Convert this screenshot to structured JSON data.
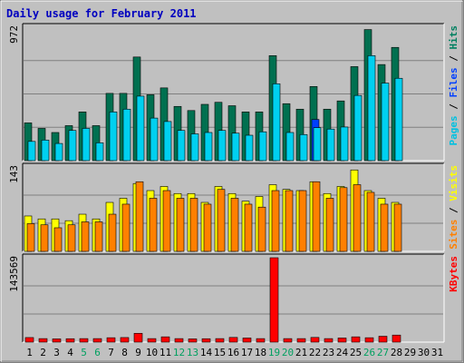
{
  "chart_data": {
    "type": "bar",
    "title": "Daily usage for February 2011",
    "categories": [
      "1",
      "2",
      "3",
      "4",
      "5",
      "6",
      "7",
      "8",
      "9",
      "10",
      "11",
      "12",
      "13",
      "14",
      "15",
      "16",
      "17",
      "18",
      "19",
      "20",
      "21",
      "22",
      "23",
      "24",
      "25",
      "26",
      "27",
      "28",
      "29",
      "30",
      "31"
    ],
    "weekend_days": [
      "5",
      "6",
      "12",
      "13",
      "19",
      "20",
      "26",
      "27"
    ],
    "panels": [
      {
        "id": "hits",
        "ylabel_parts": [
          "Pages",
          "Files",
          "Hits"
        ],
        "ylabel_colors": [
          "#00c0e0",
          "#0040ff",
          "#008060"
        ],
        "max_label": "972",
        "ylim": [
          0,
          972
        ],
        "series": [
          {
            "name": "Hits",
            "color": "#007050",
            "values": [
              275,
              235,
              205,
              255,
              355,
              255,
              490,
              490,
              755,
              480,
              530,
              395,
              365,
              410,
              425,
              400,
              355,
              355,
              765,
              415,
              375,
              540,
              375,
              435,
              685,
              955,
              700,
              825,
              0,
              0,
              0
            ]
          },
          {
            "name": "Files",
            "color": "#0040ff",
            "values": [
              0,
              0,
              0,
              0,
              0,
              0,
              0,
              0,
              0,
              0,
              0,
              0,
              0,
              0,
              0,
              0,
              0,
              0,
              0,
              0,
              0,
              300,
              0,
              0,
              0,
              0,
              0,
              0,
              0,
              0,
              0
            ]
          },
          {
            "name": "Pages",
            "color": "#00d0f0",
            "values": [
              140,
              150,
              125,
              220,
              235,
              130,
              355,
              375,
              470,
              310,
              285,
              220,
              195,
              205,
              220,
              200,
              185,
              210,
              560,
              205,
              190,
              240,
              230,
              245,
              475,
              765,
              565,
              600,
              0,
              0,
              0
            ]
          }
        ]
      },
      {
        "id": "visits",
        "ylabel_parts": [
          "Sites",
          "Visits"
        ],
        "ylabel_colors": [
          "#ff8000",
          "#ffff00"
        ],
        "max_label": "143",
        "ylim": [
          0,
          143
        ],
        "series": [
          {
            "name": "Visits",
            "color": "#ffff00",
            "values": [
              60,
              55,
              55,
              52,
              63,
              55,
              83,
              90,
              115,
              103,
              110,
              98,
              98,
              83,
              110,
              98,
              85,
              93,
              113,
              105,
              103,
              118,
              98,
              110,
              138,
              103,
              90,
              83,
              0,
              0,
              0
            ]
          },
          {
            "name": "Sites",
            "color": "#ff8000",
            "values": [
              47,
              45,
              40,
              45,
              50,
              50,
              63,
              80,
              118,
              90,
              103,
              90,
              90,
              80,
              105,
              90,
              80,
              75,
              103,
              103,
              103,
              118,
              90,
              108,
              113,
              100,
              80,
              80,
              0,
              0,
              0
            ]
          }
        ]
      },
      {
        "id": "kbytes",
        "ylabel_parts": [
          "KBytes"
        ],
        "ylabel_colors": [
          "#ff0000"
        ],
        "max_label": "143569",
        "ylim": [
          0,
          143569
        ],
        "series": [
          {
            "name": "KBytes",
            "color": "#ff0000",
            "values": [
              7800,
              6000,
              5500,
              5800,
              6000,
              6000,
              7500,
              7800,
              15000,
              6000,
              9000,
              6000,
              5500,
              5800,
              6000,
              8000,
              7000,
              6000,
              143569,
              6000,
              6000,
              8000,
              6000,
              7000,
              9000,
              7500,
              10000,
              12000,
              0,
              0,
              0
            ]
          }
        ]
      }
    ]
  }
}
